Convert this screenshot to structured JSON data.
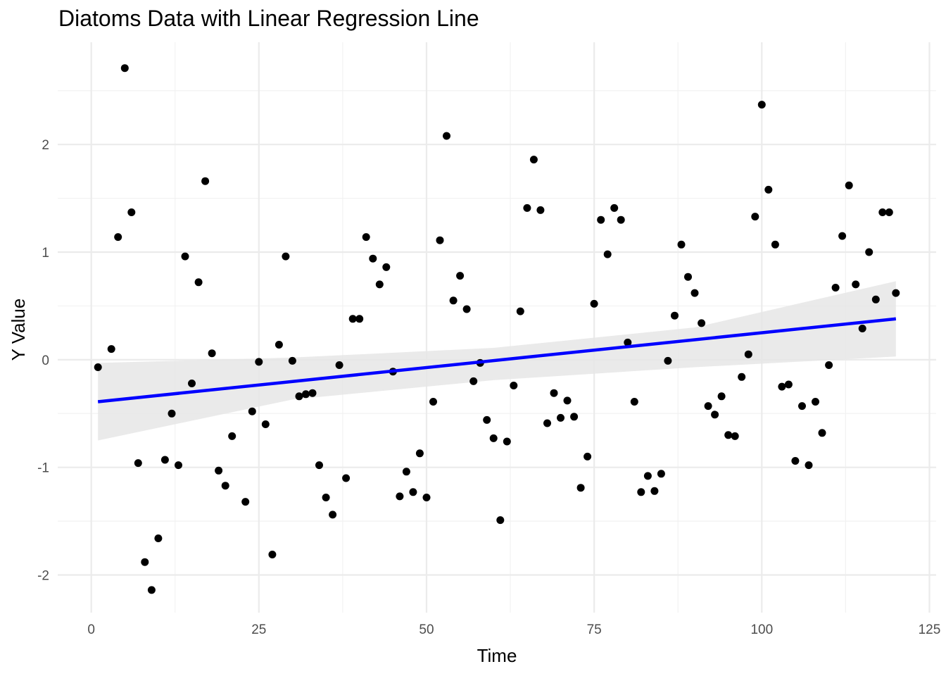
{
  "chart_data": {
    "type": "scatter",
    "title": "Diatoms Data with Linear Regression Line",
    "xlabel": "Time",
    "ylabel": "Y Value",
    "xlim": [
      -5,
      126
    ],
    "ylim": [
      -2.35,
      2.95
    ],
    "x_ticks": [
      0,
      25,
      50,
      75,
      100,
      125
    ],
    "y_ticks": [
      -2,
      -1,
      0,
      1,
      2
    ],
    "x_tick_labels": [
      "0",
      "25",
      "50",
      "75",
      "100",
      "125"
    ],
    "y_tick_labels": [
      "-2",
      "-1",
      "0",
      "1",
      "2"
    ],
    "grid": true,
    "point_color": "#000000",
    "fit_color": "#0000ff",
    "band_color": "#e6e6e6",
    "points": [
      {
        "x": 1,
        "y": -0.07
      },
      {
        "x": 3,
        "y": 0.1
      },
      {
        "x": 4,
        "y": 1.14
      },
      {
        "x": 5,
        "y": 2.71
      },
      {
        "x": 6,
        "y": 1.37
      },
      {
        "x": 7,
        "y": -0.96
      },
      {
        "x": 8,
        "y": -1.88
      },
      {
        "x": 9,
        "y": -2.14
      },
      {
        "x": 10,
        "y": -1.66
      },
      {
        "x": 11,
        "y": -0.93
      },
      {
        "x": 12,
        "y": -0.5
      },
      {
        "x": 13,
        "y": -0.98
      },
      {
        "x": 14,
        "y": 0.96
      },
      {
        "x": 15,
        "y": -0.22
      },
      {
        "x": 16,
        "y": 0.72
      },
      {
        "x": 17,
        "y": 1.66
      },
      {
        "x": 18,
        "y": 0.06
      },
      {
        "x": 19,
        "y": -1.03
      },
      {
        "x": 20,
        "y": -1.17
      },
      {
        "x": 21,
        "y": -0.71
      },
      {
        "x": 23,
        "y": -1.32
      },
      {
        "x": 24,
        "y": -0.48
      },
      {
        "x": 25,
        "y": -0.02
      },
      {
        "x": 26,
        "y": -0.6
      },
      {
        "x": 27,
        "y": -1.81
      },
      {
        "x": 28,
        "y": 0.14
      },
      {
        "x": 29,
        "y": 0.96
      },
      {
        "x": 30,
        "y": -0.01
      },
      {
        "x": 31,
        "y": -0.34
      },
      {
        "x": 32,
        "y": -0.32
      },
      {
        "x": 33,
        "y": -0.31
      },
      {
        "x": 34,
        "y": -0.98
      },
      {
        "x": 35,
        "y": -1.28
      },
      {
        "x": 36,
        "y": -1.44
      },
      {
        "x": 37,
        "y": -0.05
      },
      {
        "x": 38,
        "y": -1.1
      },
      {
        "x": 39,
        "y": 0.38
      },
      {
        "x": 40,
        "y": 0.38
      },
      {
        "x": 41,
        "y": 1.14
      },
      {
        "x": 42,
        "y": 0.94
      },
      {
        "x": 43,
        "y": 0.7
      },
      {
        "x": 44,
        "y": 0.86
      },
      {
        "x": 45,
        "y": -0.11
      },
      {
        "x": 46,
        "y": -1.27
      },
      {
        "x": 47,
        "y": -1.04
      },
      {
        "x": 48,
        "y": -1.23
      },
      {
        "x": 49,
        "y": -0.87
      },
      {
        "x": 50,
        "y": -1.28
      },
      {
        "x": 51,
        "y": -0.39
      },
      {
        "x": 52,
        "y": 1.11
      },
      {
        "x": 53,
        "y": 2.08
      },
      {
        "x": 54,
        "y": 0.55
      },
      {
        "x": 55,
        "y": 0.78
      },
      {
        "x": 56,
        "y": 0.47
      },
      {
        "x": 57,
        "y": -0.2
      },
      {
        "x": 58,
        "y": -0.03
      },
      {
        "x": 59,
        "y": -0.56
      },
      {
        "x": 60,
        "y": -0.73
      },
      {
        "x": 61,
        "y": -1.49
      },
      {
        "x": 62,
        "y": -0.76
      },
      {
        "x": 63,
        "y": -0.24
      },
      {
        "x": 64,
        "y": 0.45
      },
      {
        "x": 65,
        "y": 1.41
      },
      {
        "x": 66,
        "y": 1.86
      },
      {
        "x": 67,
        "y": 1.39
      },
      {
        "x": 68,
        "y": -0.59
      },
      {
        "x": 69,
        "y": -0.31
      },
      {
        "x": 70,
        "y": -0.54
      },
      {
        "x": 71,
        "y": -0.38
      },
      {
        "x": 72,
        "y": -0.53
      },
      {
        "x": 73,
        "y": -1.19
      },
      {
        "x": 74,
        "y": -0.9
      },
      {
        "x": 75,
        "y": 0.52
      },
      {
        "x": 76,
        "y": 1.3
      },
      {
        "x": 77,
        "y": 0.98
      },
      {
        "x": 78,
        "y": 1.41
      },
      {
        "x": 79,
        "y": 1.3
      },
      {
        "x": 80,
        "y": 0.16
      },
      {
        "x": 81,
        "y": -0.39
      },
      {
        "x": 82,
        "y": -1.23
      },
      {
        "x": 83,
        "y": -1.08
      },
      {
        "x": 84,
        "y": -1.22
      },
      {
        "x": 85,
        "y": -1.06
      },
      {
        "x": 86,
        "y": -0.01
      },
      {
        "x": 87,
        "y": 0.41
      },
      {
        "x": 88,
        "y": 1.07
      },
      {
        "x": 89,
        "y": 0.77
      },
      {
        "x": 90,
        "y": 0.62
      },
      {
        "x": 91,
        "y": 0.34
      },
      {
        "x": 92,
        "y": -0.43
      },
      {
        "x": 93,
        "y": -0.51
      },
      {
        "x": 94,
        "y": -0.34
      },
      {
        "x": 95,
        "y": -0.7
      },
      {
        "x": 96,
        "y": -0.71
      },
      {
        "x": 97,
        "y": -0.16
      },
      {
        "x": 98,
        "y": 0.05
      },
      {
        "x": 99,
        "y": 1.33
      },
      {
        "x": 100,
        "y": 2.37
      },
      {
        "x": 101,
        "y": 1.58
      },
      {
        "x": 102,
        "y": 1.07
      },
      {
        "x": 103,
        "y": -0.25
      },
      {
        "x": 104,
        "y": -0.23
      },
      {
        "x": 105,
        "y": -0.94
      },
      {
        "x": 106,
        "y": -0.43
      },
      {
        "x": 107,
        "y": -0.98
      },
      {
        "x": 108,
        "y": -0.39
      },
      {
        "x": 109,
        "y": -0.68
      },
      {
        "x": 110,
        "y": -0.05
      },
      {
        "x": 111,
        "y": 0.67
      },
      {
        "x": 112,
        "y": 1.15
      },
      {
        "x": 113,
        "y": 1.62
      },
      {
        "x": 114,
        "y": 0.7
      },
      {
        "x": 115,
        "y": 0.29
      },
      {
        "x": 116,
        "y": 1.0
      },
      {
        "x": 117,
        "y": 0.56
      },
      {
        "x": 118,
        "y": 1.37
      },
      {
        "x": 119,
        "y": 1.37
      },
      {
        "x": 120,
        "y": 0.62
      }
    ],
    "regression": {
      "x": [
        1,
        120
      ],
      "y": [
        -0.39,
        0.38
      ]
    },
    "confidence_band": {
      "x": [
        1,
        30,
        60,
        90,
        120
      ],
      "upper": [
        -0.03,
        0.02,
        0.11,
        0.3,
        0.73
      ],
      "lower": [
        -0.75,
        -0.37,
        -0.19,
        -0.07,
        0.03
      ]
    }
  }
}
